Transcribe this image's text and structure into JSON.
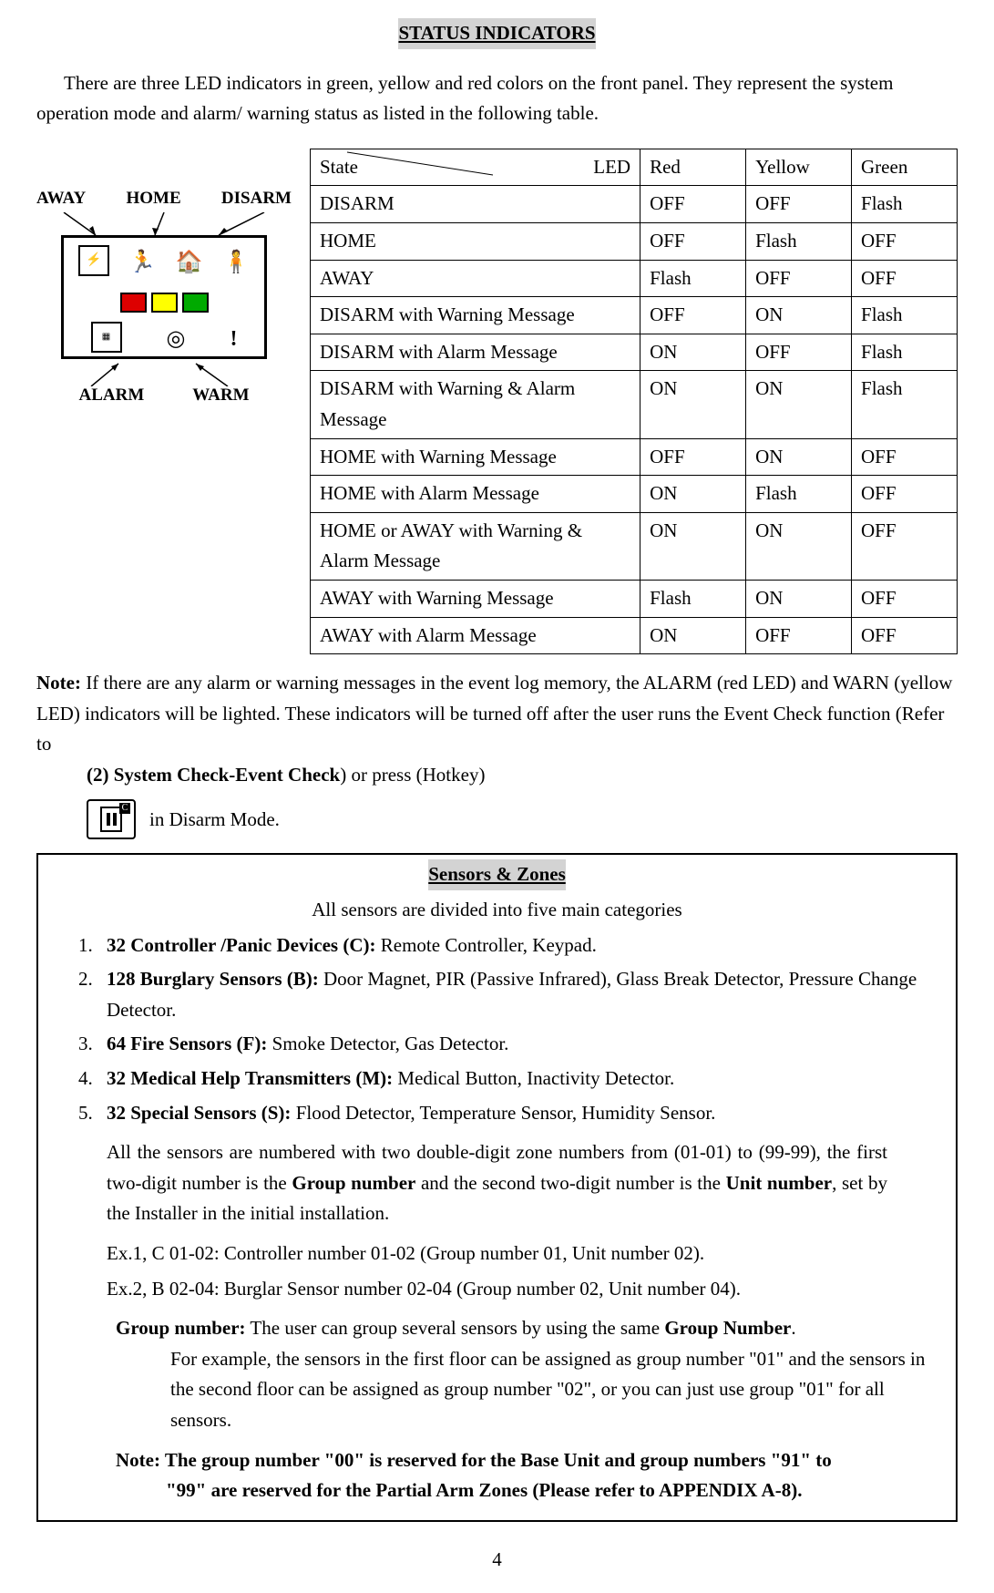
{
  "title": "STATUS INDICATORS",
  "intro": "There are three LED indicators in green, yellow and red colors on the front panel. They represent the system operation mode and alarm/ warning status as listed in the following table.",
  "diagram": {
    "labels_top": [
      "AWAY",
      "HOME",
      "DISARM"
    ],
    "labels_bottom": [
      "ALARM",
      "WARM"
    ]
  },
  "table": {
    "header_left": "State",
    "header_right": "LED",
    "columns": [
      "Red",
      "Yellow",
      "Green"
    ],
    "rows": [
      {
        "state": "DISARM",
        "red": "OFF",
        "yellow": "OFF",
        "green": "Flash"
      },
      {
        "state": "HOME",
        "red": "OFF",
        "yellow": "Flash",
        "green": "OFF"
      },
      {
        "state": "AWAY",
        "red": "Flash",
        "yellow": "OFF",
        "green": "OFF"
      },
      {
        "state": "DISARM with Warning Message",
        "red": "OFF",
        "yellow": "ON",
        "green": "Flash"
      },
      {
        "state": "DISARM with Alarm Message",
        "red": "ON",
        "yellow": "OFF",
        "green": "Flash"
      },
      {
        "state": "DISARM with Warning & Alarm Message",
        "red": "ON",
        "yellow": "ON",
        "green": "Flash"
      },
      {
        "state": "HOME with Warning Message",
        "red": "OFF",
        "yellow": "ON",
        "green": "OFF"
      },
      {
        "state": "HOME with Alarm Message",
        "red": "ON",
        "yellow": "Flash",
        "green": "OFF"
      },
      {
        "state": "HOME or AWAY with Warning & Alarm Message",
        "red": "ON",
        "yellow": "ON",
        "green": "OFF"
      },
      {
        "state": "AWAY with Warning Message",
        "red": "Flash",
        "yellow": "ON",
        "green": "OFF"
      },
      {
        "state": "AWAY with Alarm Message",
        "red": "ON",
        "yellow": "OFF",
        "green": "OFF"
      }
    ]
  },
  "note": {
    "label": "Note:",
    "text1": "If there are any alarm or warning messages in the event log memory, the ALARM (red LED) and WARN (yellow LED) indicators will be lighted. These indicators will be turned off after the user runs the Event Check function (Refer to ",
    "bold_ref": "(2) System Check-Event Check",
    "text2": ") or press (Hotkey)",
    "text3": "  in Disarm Mode."
  },
  "sensors": {
    "title": "Sensors & Zones",
    "subtitle": "All sensors are divided into five main categories",
    "items": [
      {
        "bold": "32 Controller /Panic Devices (C):",
        "text": " Remote Controller, Keypad."
      },
      {
        "bold": "128 Burglary Sensors (B):",
        "text": " Door Magnet, PIR (Passive Infrared), Glass Break Detector, Pressure Change Detector."
      },
      {
        "bold": "64 Fire Sensors (F):",
        "text": " Smoke Detector, Gas Detector."
      },
      {
        "bold": "32 Medical Help Transmitters (M):",
        "text": " Medical Button, Inactivity Detector."
      },
      {
        "bold": "32 Special Sensors (S):",
        "text": " Flood Detector, Temperature Sensor, Humidity Sensor."
      }
    ],
    "numbered_text1a": "All the sensors are numbered with two double-digit zone numbers from (01-01) to (99-99), the first two-digit number is the ",
    "group_num_bold": "Group number",
    "numbered_text1b": " and the second two-digit number is the ",
    "unit_num_bold": "Unit number",
    "numbered_text1c": ", set by the Installer in the initial installation.",
    "ex1": "Ex.1, C 01-02: Controller number 01-02    (Group number 01, Unit number 02).",
    "ex2": "Ex.2, B 02-04: Burglar Sensor number 02-04    (Group number 02, Unit number 04).",
    "group_label": "Group number:",
    "group_text1": " The user can group several sensors by using the same ",
    "group_number_bold2": "Group Number",
    "group_text2": ". For example, the sensors in the first floor can be assigned as group number \"01\" and the sensors in the second floor can be assigned as group number \"02\", or you can just use group \"01\" for all sensors.",
    "reserved": "Note: The group number \"00\" is reserved for the Base Unit and group numbers \"91\" to \"99\" are reserved for the Partial Arm Zones (Please refer to APPENDIX A-8)."
  },
  "page_number": "4"
}
